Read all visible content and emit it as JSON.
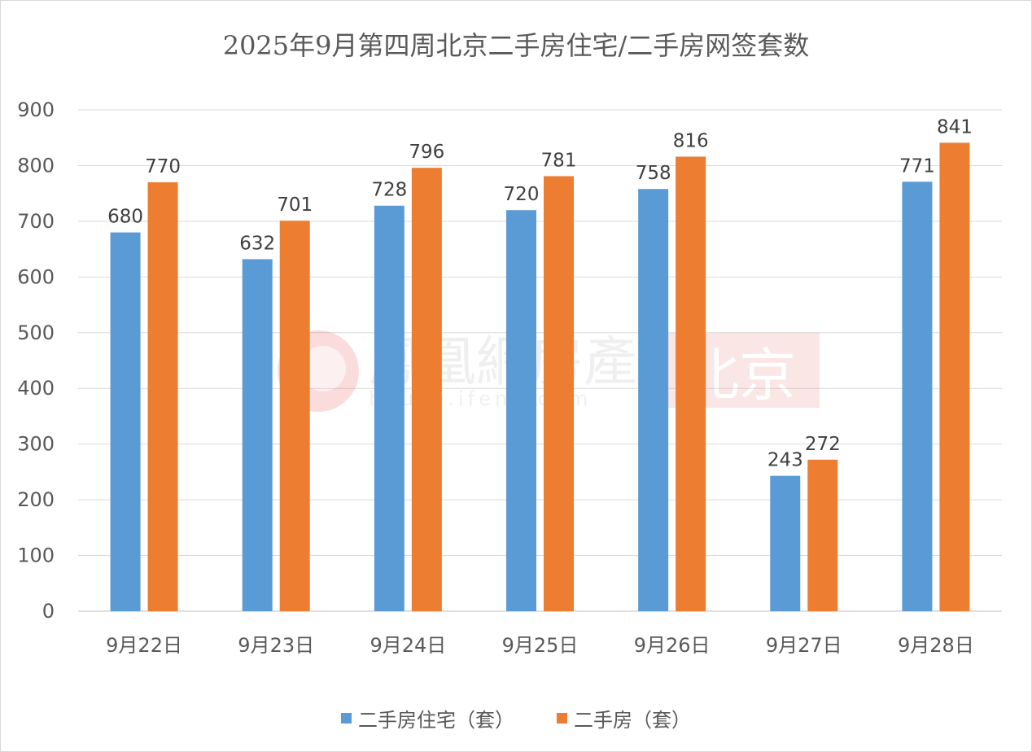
{
  "chart_data": {
    "type": "bar",
    "title": "2025年9月第四周北京二手房住宅/二手房网签套数",
    "categories": [
      "9月22日",
      "9月23日",
      "9月24日",
      "9月25日",
      "9月26日",
      "9月27日",
      "9月28日"
    ],
    "series": [
      {
        "name": "二手房住宅（套）",
        "color": "#5B9BD5",
        "values": [
          680,
          632,
          728,
          720,
          758,
          243,
          771
        ]
      },
      {
        "name": "二手房（套）",
        "color": "#ED7D31",
        "values": [
          770,
          701,
          796,
          781,
          816,
          272,
          841
        ]
      }
    ],
    "ylim": [
      0,
      900
    ],
    "yticks": [
      0,
      100,
      200,
      300,
      400,
      500,
      600,
      700,
      800,
      900
    ],
    "grid": true,
    "legend_position": "bottom"
  },
  "watermark": {
    "brand": "鳳凰網房產",
    "city": "北京",
    "domain": "house.ifeng.com"
  }
}
